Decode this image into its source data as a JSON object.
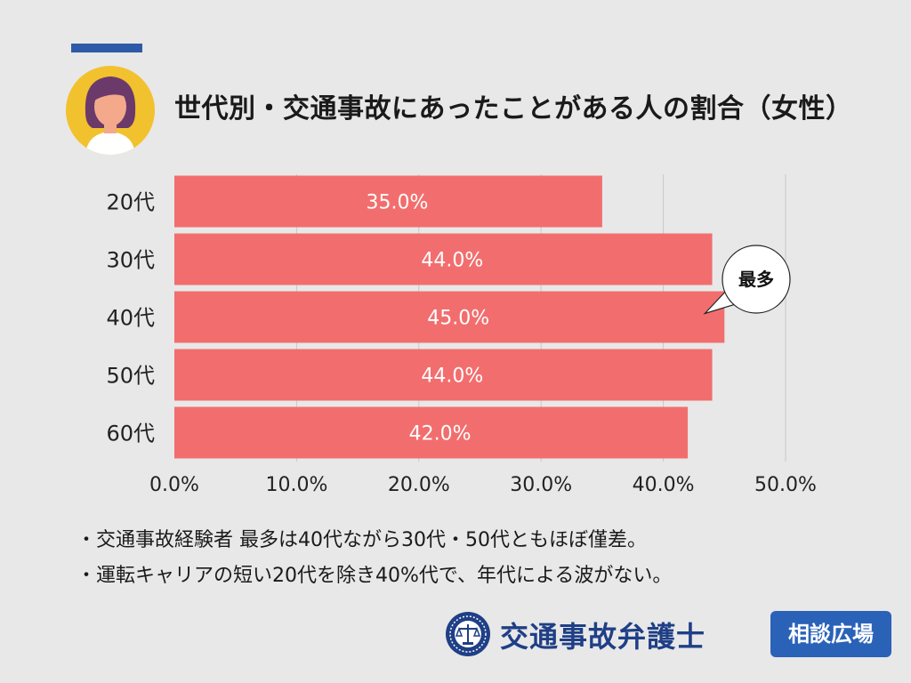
{
  "title": "世代別・交通事故にあったことがある人の割合（女性）",
  "colors": {
    "bar": "#f26e6e",
    "accent": "#2e5aa8",
    "brand": "#1f3f86",
    "badge": "#2a62b8",
    "avatar_bg": "#f2c12e",
    "hair": "#6b3a6b",
    "skin": "#f4a98a"
  },
  "avatar": {
    "icon": "woman-avatar-icon"
  },
  "callout": {
    "text": "最多",
    "category": "40代"
  },
  "chart_data": {
    "type": "bar",
    "orientation": "horizontal",
    "categories": [
      "20代",
      "30代",
      "40代",
      "50代",
      "60代"
    ],
    "values": [
      35.0,
      44.0,
      45.0,
      44.0,
      42.0
    ],
    "value_labels": [
      "35.0%",
      "44.0%",
      "45.0%",
      "44.0%",
      "42.0%"
    ],
    "xlim": [
      0,
      50
    ],
    "xticks": [
      0,
      10,
      20,
      30,
      40,
      50
    ],
    "xtick_labels": [
      "0.0%",
      "10.0%",
      "20.0%",
      "30.0%",
      "40.0%",
      "50.0%"
    ],
    "grid": "vertical",
    "legend": "none"
  },
  "notes": [
    "・交通事故経験者 最多は40代ながら30代・50代ともほぼ僅差。",
    "・運転キャリアの短い20代を除き40%代で、年代による波がない。"
  ],
  "logo": {
    "icon": "scales-of-justice-icon",
    "name": "交通事故弁護士",
    "badge": "相談広場"
  }
}
